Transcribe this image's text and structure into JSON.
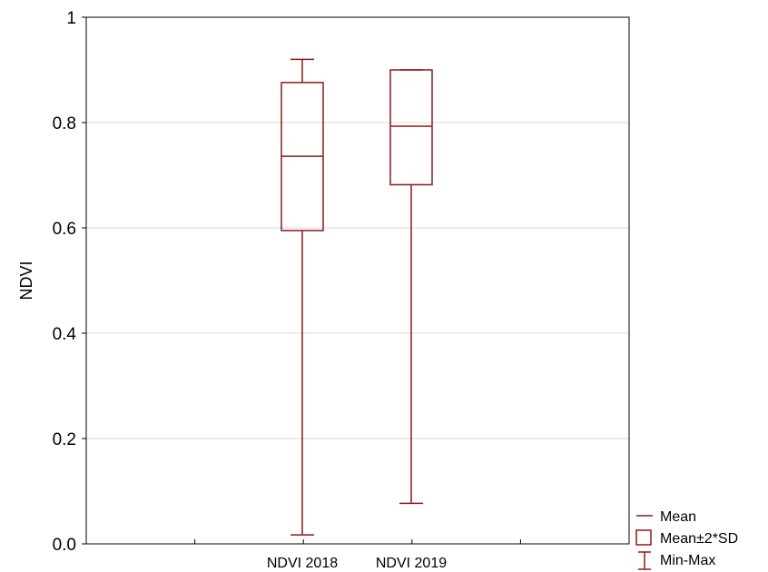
{
  "chart_data": {
    "type": "box",
    "ylabel": "NDVI",
    "xlabel": "",
    "ylim": [
      0,
      1
    ],
    "yticks": [
      0.0,
      0.2,
      0.4,
      0.6,
      0.8,
      1.0
    ],
    "ytick_labels": [
      "0.0",
      "0.2",
      "0.4",
      "0.6",
      "0.8",
      "1"
    ],
    "categories": [
      "NDVI 2018",
      "NDVI 2019"
    ],
    "boxes": [
      {
        "name": "NDVI 2018",
        "mean": 0.736,
        "box_low": 0.595,
        "box_high": 0.876,
        "min": 0.017,
        "max": 0.92
      },
      {
        "name": "NDVI 2019",
        "mean": 0.793,
        "box_low": 0.682,
        "box_high": 0.9,
        "min": 0.077,
        "max": 0.9
      }
    ],
    "grid": {
      "horizontal": true,
      "vertical": false
    },
    "legend": {
      "placement": "bottom-right",
      "entries": [
        {
          "symbol": "line",
          "label": "Mean"
        },
        {
          "symbol": "box",
          "label": "Mean±2*SD"
        },
        {
          "symbol": "whisker",
          "label": "Min-Max"
        }
      ]
    },
    "colors": {
      "series": "#8b1a1a",
      "grid": "#d9d9d9",
      "axis": "#000000"
    }
  }
}
